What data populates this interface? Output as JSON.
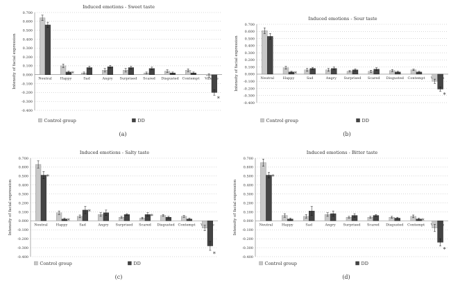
{
  "chart_data": [
    {
      "type": "bar",
      "panel_label": "(a)",
      "title": "Induced emotions - Sweet taste",
      "ylabel": "Intensity of facial expression",
      "xlabel": "",
      "ylim": [
        -0.4,
        0.7
      ],
      "yticks": [
        "0.700",
        "0.600",
        "0.500",
        "0.400",
        "0.300",
        "0.200",
        "0.100",
        "0.000",
        "-0.100",
        "-0.200",
        "-0.300",
        "-0.400"
      ],
      "grid": "dotted horizontal",
      "legend_position": "bottom",
      "categories": [
        "Neutral",
        "Happy",
        "Sad",
        "Angry",
        "Surprised",
        "Scared",
        "Disgusted",
        "Contempt",
        "Valence"
      ],
      "series": [
        {
          "name": "Control group",
          "color": "#c8c8c8",
          "values": [
            0.64,
            0.1,
            0.02,
            0.05,
            0.05,
            0.02,
            0.04,
            0.05,
            -0.01
          ],
          "errors": [
            0.03,
            0.02,
            0.01,
            0.02,
            0.02,
            0.01,
            0.015,
            0.015,
            0.02
          ]
        },
        {
          "name": "DD",
          "color": "#444444",
          "values": [
            0.56,
            0.03,
            0.08,
            0.09,
            0.08,
            0.07,
            0.02,
            0.02,
            -0.2
          ],
          "errors": [
            0.03,
            0.01,
            0.015,
            0.015,
            0.015,
            0.015,
            0.01,
            0.01,
            0.03
          ]
        }
      ],
      "significant": [
        1,
        8
      ],
      "significance_mark": "*"
    },
    {
      "type": "bar",
      "panel_label": "(b)",
      "title": "Induced emotions - Sour taste",
      "ylabel": "Intensity of facial expression",
      "xlabel": "",
      "ylim": [
        -0.4,
        0.7
      ],
      "yticks": [
        "0.700",
        "0.600",
        "0.500",
        "0.400",
        "0.300",
        "0.200",
        "0.100",
        "0.000",
        "-0.100",
        "-0.200",
        "-0.300",
        "-0.400"
      ],
      "grid": "dotted horizontal",
      "legend_position": "bottom",
      "categories": [
        "Neutral",
        "Happy",
        "Sad",
        "Angry",
        "Surprised",
        "Scared",
        "Disgusted",
        "Contempt",
        "Valence"
      ],
      "series": [
        {
          "name": "Control group",
          "color": "#c8c8c8",
          "values": [
            0.61,
            0.09,
            0.06,
            0.06,
            0.04,
            0.04,
            0.05,
            0.06,
            -0.1
          ],
          "errors": [
            0.04,
            0.02,
            0.02,
            0.02,
            0.01,
            0.015,
            0.015,
            0.01,
            0.03
          ]
        },
        {
          "name": "DD",
          "color": "#444444",
          "values": [
            0.53,
            0.03,
            0.08,
            0.08,
            0.06,
            0.07,
            0.03,
            0.03,
            -0.21
          ],
          "errors": [
            0.04,
            0.01,
            0.015,
            0.02,
            0.015,
            0.02,
            0.01,
            0.01,
            0.03
          ]
        }
      ],
      "significant": [
        1,
        8
      ],
      "significance_mark": "*"
    },
    {
      "type": "bar",
      "panel_label": "(c)",
      "title": "Induced emotions - Salty taste",
      "ylabel": "Intensity of facial expression",
      "xlabel": "",
      "ylim": [
        -0.4,
        0.7
      ],
      "yticks": [
        "0.700",
        "0.600",
        "0.500",
        "0.400",
        "0.300",
        "0.200",
        "0.100",
        "0.000",
        "-0.100",
        "-0.200",
        "-0.300",
        "-0.400"
      ],
      "grid": "dotted horizontal",
      "legend_position": "bottom",
      "categories": [
        "Neutral",
        "Happy",
        "Sad",
        "Angry",
        "Surprised",
        "Scared",
        "Disgusted",
        "Contempt",
        "Valence"
      ],
      "series": [
        {
          "name": "Control group",
          "color": "#c8c8c8",
          "values": [
            0.63,
            0.09,
            0.05,
            0.07,
            0.04,
            0.03,
            0.06,
            0.05,
            -0.08
          ],
          "errors": [
            0.04,
            0.02,
            0.015,
            0.02,
            0.01,
            0.01,
            0.01,
            0.01,
            0.03
          ]
        },
        {
          "name": "DD",
          "color": "#444444",
          "values": [
            0.51,
            0.02,
            0.12,
            0.09,
            0.07,
            0.07,
            0.04,
            0.02,
            -0.28
          ],
          "errors": [
            0.04,
            0.01,
            0.04,
            0.03,
            0.01,
            0.02,
            0.01,
            0.01,
            0.05
          ]
        }
      ],
      "significant": [
        0,
        1,
        2,
        5,
        8
      ],
      "significance_mark": "*"
    },
    {
      "type": "bar",
      "panel_label": "(d)",
      "title": "Induced emotions - Bitter taste",
      "ylabel": "Intensity of facial expression",
      "xlabel": "",
      "ylim": [
        -0.4,
        0.7
      ],
      "yticks": [
        "0.700",
        "0.600",
        "0.500",
        "0.400",
        "0.300",
        "0.200",
        "0.100",
        "0.000",
        "-0.100",
        "-0.200",
        "-0.300",
        "-0.400"
      ],
      "grid": "dotted horizontal",
      "legend_position": "bottom",
      "categories": [
        "Neutral",
        "Happy",
        "Sad",
        "Angry",
        "Surprised",
        "Scared",
        "Disgusted",
        "Contempt",
        "Valence"
      ],
      "series": [
        {
          "name": "Control group",
          "color": "#c8c8c8",
          "values": [
            0.65,
            0.06,
            0.05,
            0.07,
            0.04,
            0.04,
            0.04,
            0.05,
            -0.08
          ],
          "errors": [
            0.04,
            0.02,
            0.02,
            0.02,
            0.01,
            0.01,
            0.01,
            0.015,
            0.04
          ]
        },
        {
          "name": "DD",
          "color": "#444444",
          "values": [
            0.51,
            0.02,
            0.11,
            0.08,
            0.06,
            0.06,
            0.03,
            0.02,
            -0.24
          ],
          "errors": [
            0.03,
            0.01,
            0.05,
            0.03,
            0.02,
            0.01,
            0.01,
            0.01,
            0.04
          ]
        }
      ],
      "significant": [
        0,
        7,
        8
      ],
      "significance_mark": "*"
    }
  ]
}
